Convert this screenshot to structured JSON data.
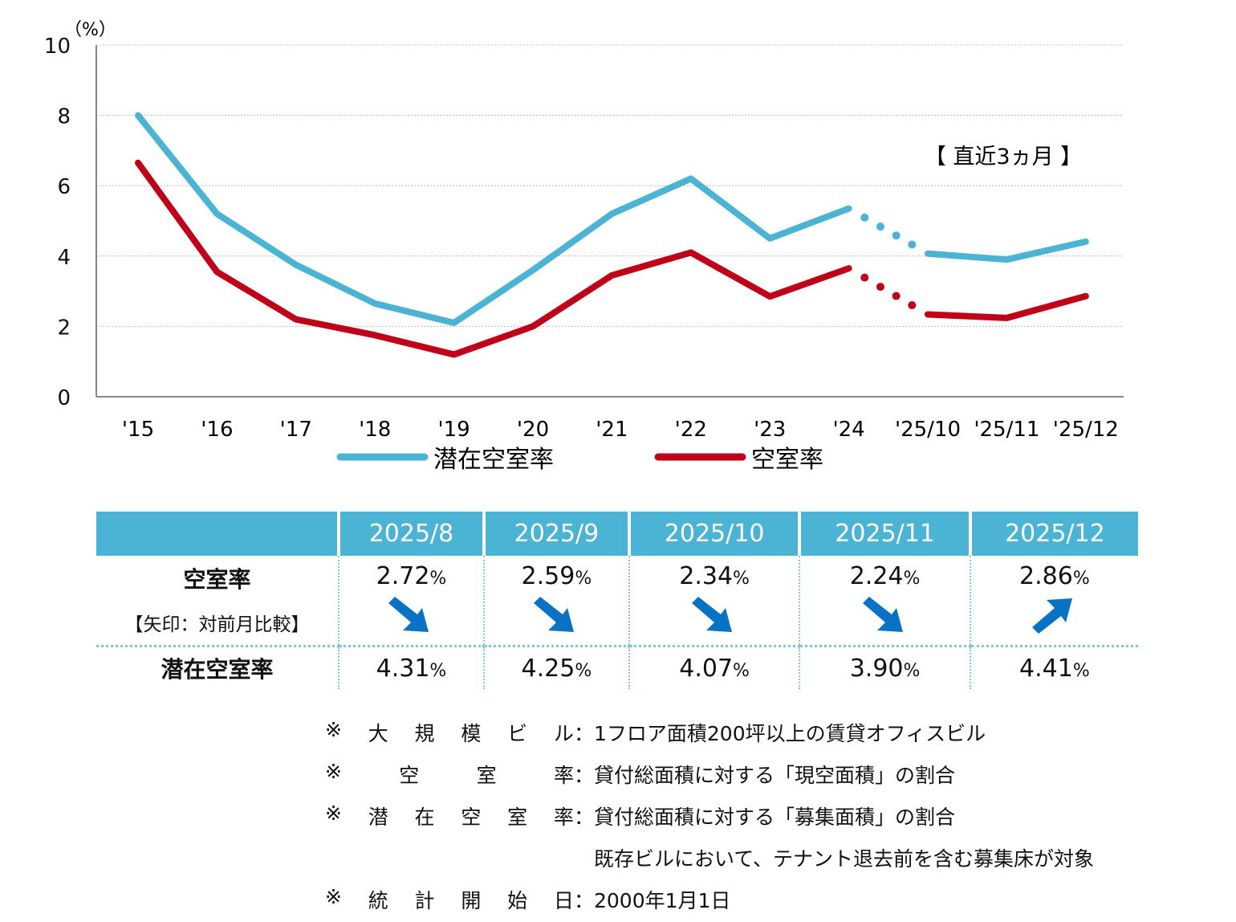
{
  "chart_data": {
    "type": "line",
    "unit_label": "（%）",
    "ylim": [
      0,
      10
    ],
    "yticks": [
      0,
      2,
      4,
      6,
      8,
      10
    ],
    "grid": true,
    "categories": [
      "'15",
      "'16",
      "'17",
      "'18",
      "'19",
      "'20",
      "'21",
      "'22",
      "'23",
      "'24",
      "'25/10",
      "'25/11",
      "'25/12"
    ],
    "series": [
      {
        "name": "潜在空室率",
        "color": "#4bb3d4",
        "values": [
          8.0,
          5.2,
          3.75,
          2.65,
          2.1,
          3.6,
          5.2,
          6.2,
          4.5,
          5.35,
          4.07,
          3.9,
          4.41
        ]
      },
      {
        "name": "空室率",
        "color": "#c00018",
        "values": [
          6.65,
          3.55,
          2.2,
          1.75,
          1.2,
          2.0,
          3.45,
          4.1,
          2.85,
          3.65,
          2.34,
          2.24,
          2.86
        ]
      }
    ],
    "dotted_between": [
      "'24",
      "'25/10"
    ],
    "annotation": "【 直近3ヵ月 】",
    "legend": "bottom"
  },
  "table": {
    "months": [
      "2025/8",
      "2025/9",
      "2025/10",
      "2025/11",
      "2025/12"
    ],
    "row1_label": "空室率",
    "row1_sub": "【矢印：対前月比較】",
    "vacancy": [
      "2.72",
      "2.59",
      "2.34",
      "2.24",
      "2.86"
    ],
    "arrows": [
      "down",
      "down",
      "down",
      "down",
      "up"
    ],
    "row2_label": "潜在空室率",
    "potential": [
      "4.31",
      "4.25",
      "4.07",
      "3.90",
      "4.41"
    ],
    "pct": "%",
    "arrow_color": "#0a72c4"
  },
  "notes": [
    {
      "mark": "※",
      "label": [
        "大",
        "規",
        "模",
        "ビ",
        "ル"
      ],
      "colon": "：",
      "text": "1フロア面積200坪以上の賃貸オフィスビル"
    },
    {
      "mark": "※",
      "label": [
        "空",
        "室",
        "率"
      ],
      "colon": "：",
      "text": "貸付総面積に対する「現空面積」の割合"
    },
    {
      "mark": "※",
      "label": [
        "潜",
        "在",
        "空",
        "室",
        "率"
      ],
      "colon": "：",
      "text": "貸付総面積に対する「募集面積」の割合"
    },
    {
      "mark": "",
      "label": [],
      "colon": "",
      "text": "既存ビルにおいて、テナント退去前を含む募集床が対象"
    },
    {
      "mark": "※",
      "label": [
        "統",
        "計",
        "開",
        "始",
        "日"
      ],
      "colon": "：",
      "text": "2000年1月1日"
    }
  ]
}
